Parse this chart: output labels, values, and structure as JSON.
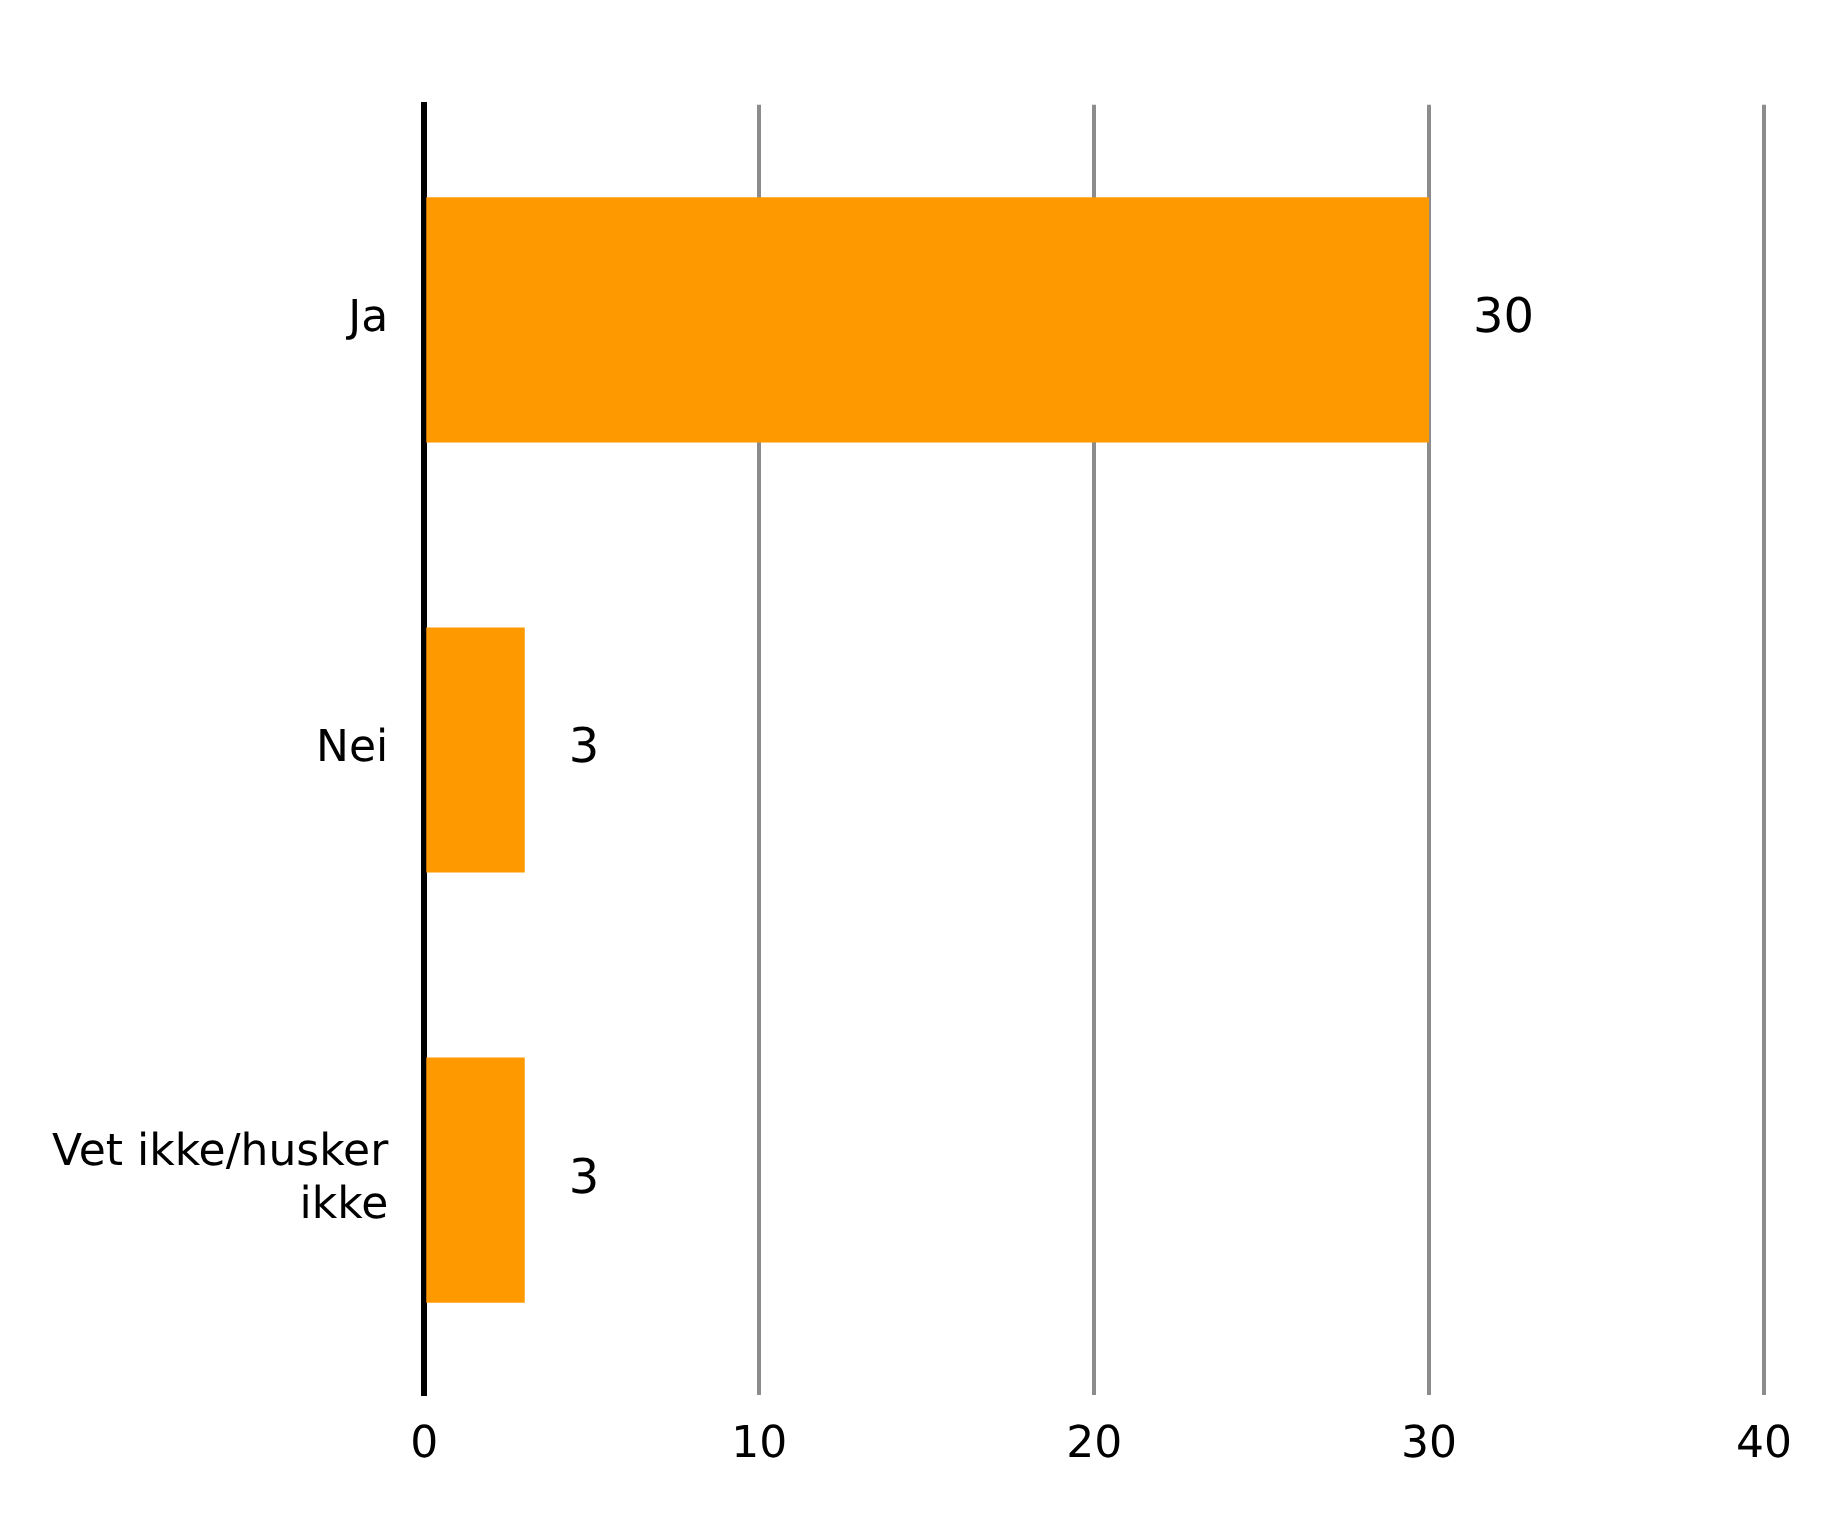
{
  "chart_data": {
    "type": "bar",
    "orientation": "horizontal",
    "categories": [
      "Ja",
      "Nei",
      "Vet ikke/husker ikke"
    ],
    "values": [
      30,
      3,
      3
    ],
    "color": "#ff9900",
    "xlim": [
      0,
      40
    ],
    "xticks": [
      0,
      10,
      20,
      30,
      40
    ],
    "grid": "x",
    "data_labels": true
  }
}
